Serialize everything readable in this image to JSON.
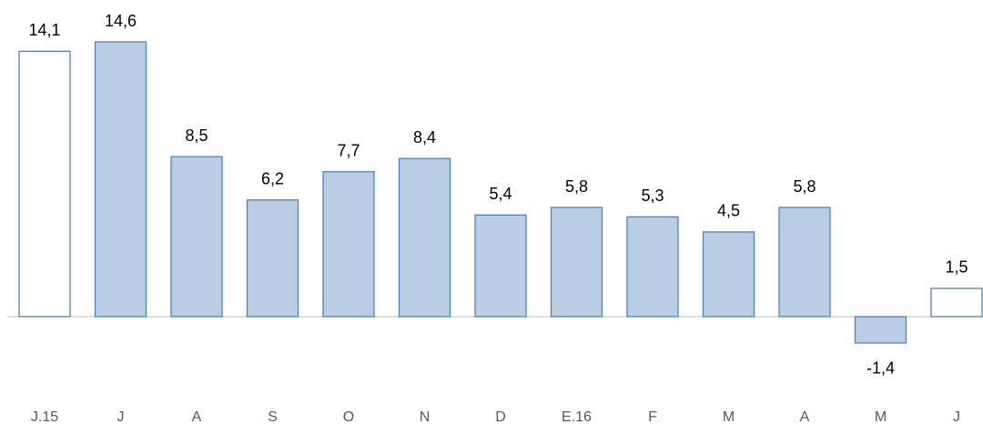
{
  "chart_data": {
    "type": "bar",
    "categories": [
      "J.15",
      "J",
      "A",
      "S",
      "O",
      "N",
      "D",
      "E.16",
      "F",
      "M",
      "A",
      "M",
      "J"
    ],
    "values": [
      14.1,
      14.6,
      8.5,
      6.2,
      7.7,
      8.4,
      5.4,
      5.8,
      5.3,
      4.5,
      5.8,
      -1.4,
      1.5
    ],
    "value_labels": [
      "14,1",
      "14,6",
      "8,5",
      "6,2",
      "7,7",
      "8,4",
      "5,4",
      "5,8",
      "5,3",
      "4,5",
      "5,8",
      "-1,4",
      "1,5"
    ],
    "colors": [
      "#ffffff",
      "#b9cde5",
      "#b9cde5",
      "#b9cde5",
      "#b9cde5",
      "#b9cde5",
      "#b9cde5",
      "#b9cde5",
      "#b9cde5",
      "#b9cde5",
      "#b9cde5",
      "#b9cde5",
      "#ffffff"
    ],
    "edge_color": "#4f81bd"
  }
}
